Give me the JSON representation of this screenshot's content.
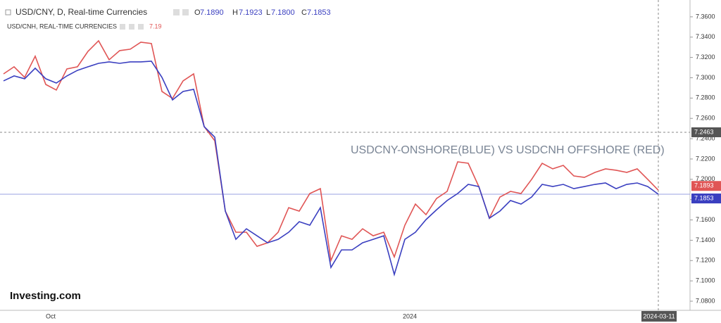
{
  "header": {
    "symbol": "USD/CNY, D, Real-time Currencies",
    "ohlc_labels": [
      "O",
      "H",
      "L",
      "C"
    ],
    "ohlc_values": [
      "7.1890",
      "7.1923",
      "7.1800",
      "7.1853"
    ],
    "symbol2": "USD/CNH, REAL-TIME CURRENCIES",
    "symbol2_value": "7.19"
  },
  "chart_data": {
    "type": "line",
    "annotation": "USDCNY-ONSHORE(BLUE) VS USDCNH OFFSHORE (RED)",
    "brand": "Investing.com",
    "categories": [
      null,
      null,
      null,
      null,
      "Oct",
      null,
      null,
      null,
      null,
      null,
      null,
      null,
      null,
      null,
      null,
      null,
      null,
      null,
      null,
      null,
      null,
      null,
      null,
      null,
      null,
      null,
      null,
      null,
      null,
      null,
      null,
      null,
      null,
      null,
      null,
      null,
      null,
      null,
      "2024",
      null,
      null,
      null,
      null,
      null,
      null,
      null,
      null,
      null,
      null,
      null,
      null,
      null,
      null,
      null,
      null,
      null,
      null,
      null,
      null,
      null,
      null,
      null,
      "2024-03-11"
    ],
    "series": [
      {
        "name": "USD/CNH",
        "color": "#e05555",
        "values": [
          7.3038,
          7.3108,
          7.3004,
          7.3212,
          7.2934,
          7.2879,
          7.3087,
          7.3108,
          7.326,
          7.3364,
          7.3177,
          7.3267,
          7.3281,
          7.335,
          7.3337,
          7.2865,
          7.2796,
          7.2969,
          7.3038,
          7.2519,
          7.238,
          7.1687,
          7.1479,
          7.1479,
          7.134,
          7.1375,
          7.1479,
          7.1721,
          7.1687,
          7.186,
          7.1908,
          7.1201,
          7.1444,
          7.1409,
          7.1513,
          7.1444,
          7.1479,
          7.1236,
          7.1548,
          7.1756,
          7.1652,
          7.1811,
          7.1881,
          7.2172,
          7.2158,
          7.1929,
          7.1617,
          7.1825,
          7.1881,
          7.186,
          7.1999,
          7.2158,
          7.2103,
          7.2137,
          7.2033,
          7.2019,
          7.2068,
          7.2103,
          7.2089,
          7.2068,
          7.2103,
          7.1999,
          7.1893
        ]
      },
      {
        "name": "USD/CNY",
        "color": "#3a3fc0",
        "values": [
          7.2969,
          7.3018,
          7.299,
          7.3094,
          7.299,
          7.2948,
          7.3018,
          7.3073,
          7.3108,
          7.3142,
          7.3156,
          7.3142,
          7.3156,
          7.3156,
          7.3163,
          7.3004,
          7.2782,
          7.2865,
          7.2886,
          7.2519,
          7.2415,
          7.1687,
          7.1409,
          7.1513,
          7.1444,
          7.1375,
          7.1409,
          7.1479,
          7.1583,
          7.1548,
          7.1721,
          7.1132,
          7.1305,
          7.1305,
          7.1375,
          7.1409,
          7.1444,
          7.1063,
          7.1409,
          7.1479,
          7.1603,
          7.17,
          7.1791,
          7.186,
          7.195,
          7.1929,
          7.1617,
          7.1687,
          7.1791,
          7.1756,
          7.1825,
          7.195,
          7.1929,
          7.195,
          7.1908,
          7.1929,
          7.195,
          7.1964,
          7.1908,
          7.195,
          7.1964,
          7.1929,
          7.1853
        ]
      }
    ],
    "crosshair": 7.2463,
    "ylim": [
      7.071,
      7.371
    ],
    "yticks": [
      {
        "value": 7.08,
        "label": "7.0800"
      },
      {
        "value": 7.1,
        "label": "7.1000"
      },
      {
        "value": 7.12,
        "label": "7.1200"
      },
      {
        "value": 7.14,
        "label": "7.1400"
      },
      {
        "value": 7.16,
        "label": "7.1600"
      },
      {
        "value": 7.18,
        "label": "7.1800"
      },
      {
        "value": 7.2,
        "label": "7.2000"
      },
      {
        "value": 7.22,
        "label": "7.2200"
      },
      {
        "value": 7.24,
        "label": "7.2400"
      },
      {
        "value": 7.26,
        "label": "7.2600"
      },
      {
        "value": 7.28,
        "label": "7.2800"
      },
      {
        "value": 7.3,
        "label": "7.3000"
      },
      {
        "value": 7.32,
        "label": "7.3200"
      },
      {
        "value": 7.34,
        "label": "7.3400"
      },
      {
        "value": 7.36,
        "label": "7.3600"
      }
    ]
  }
}
